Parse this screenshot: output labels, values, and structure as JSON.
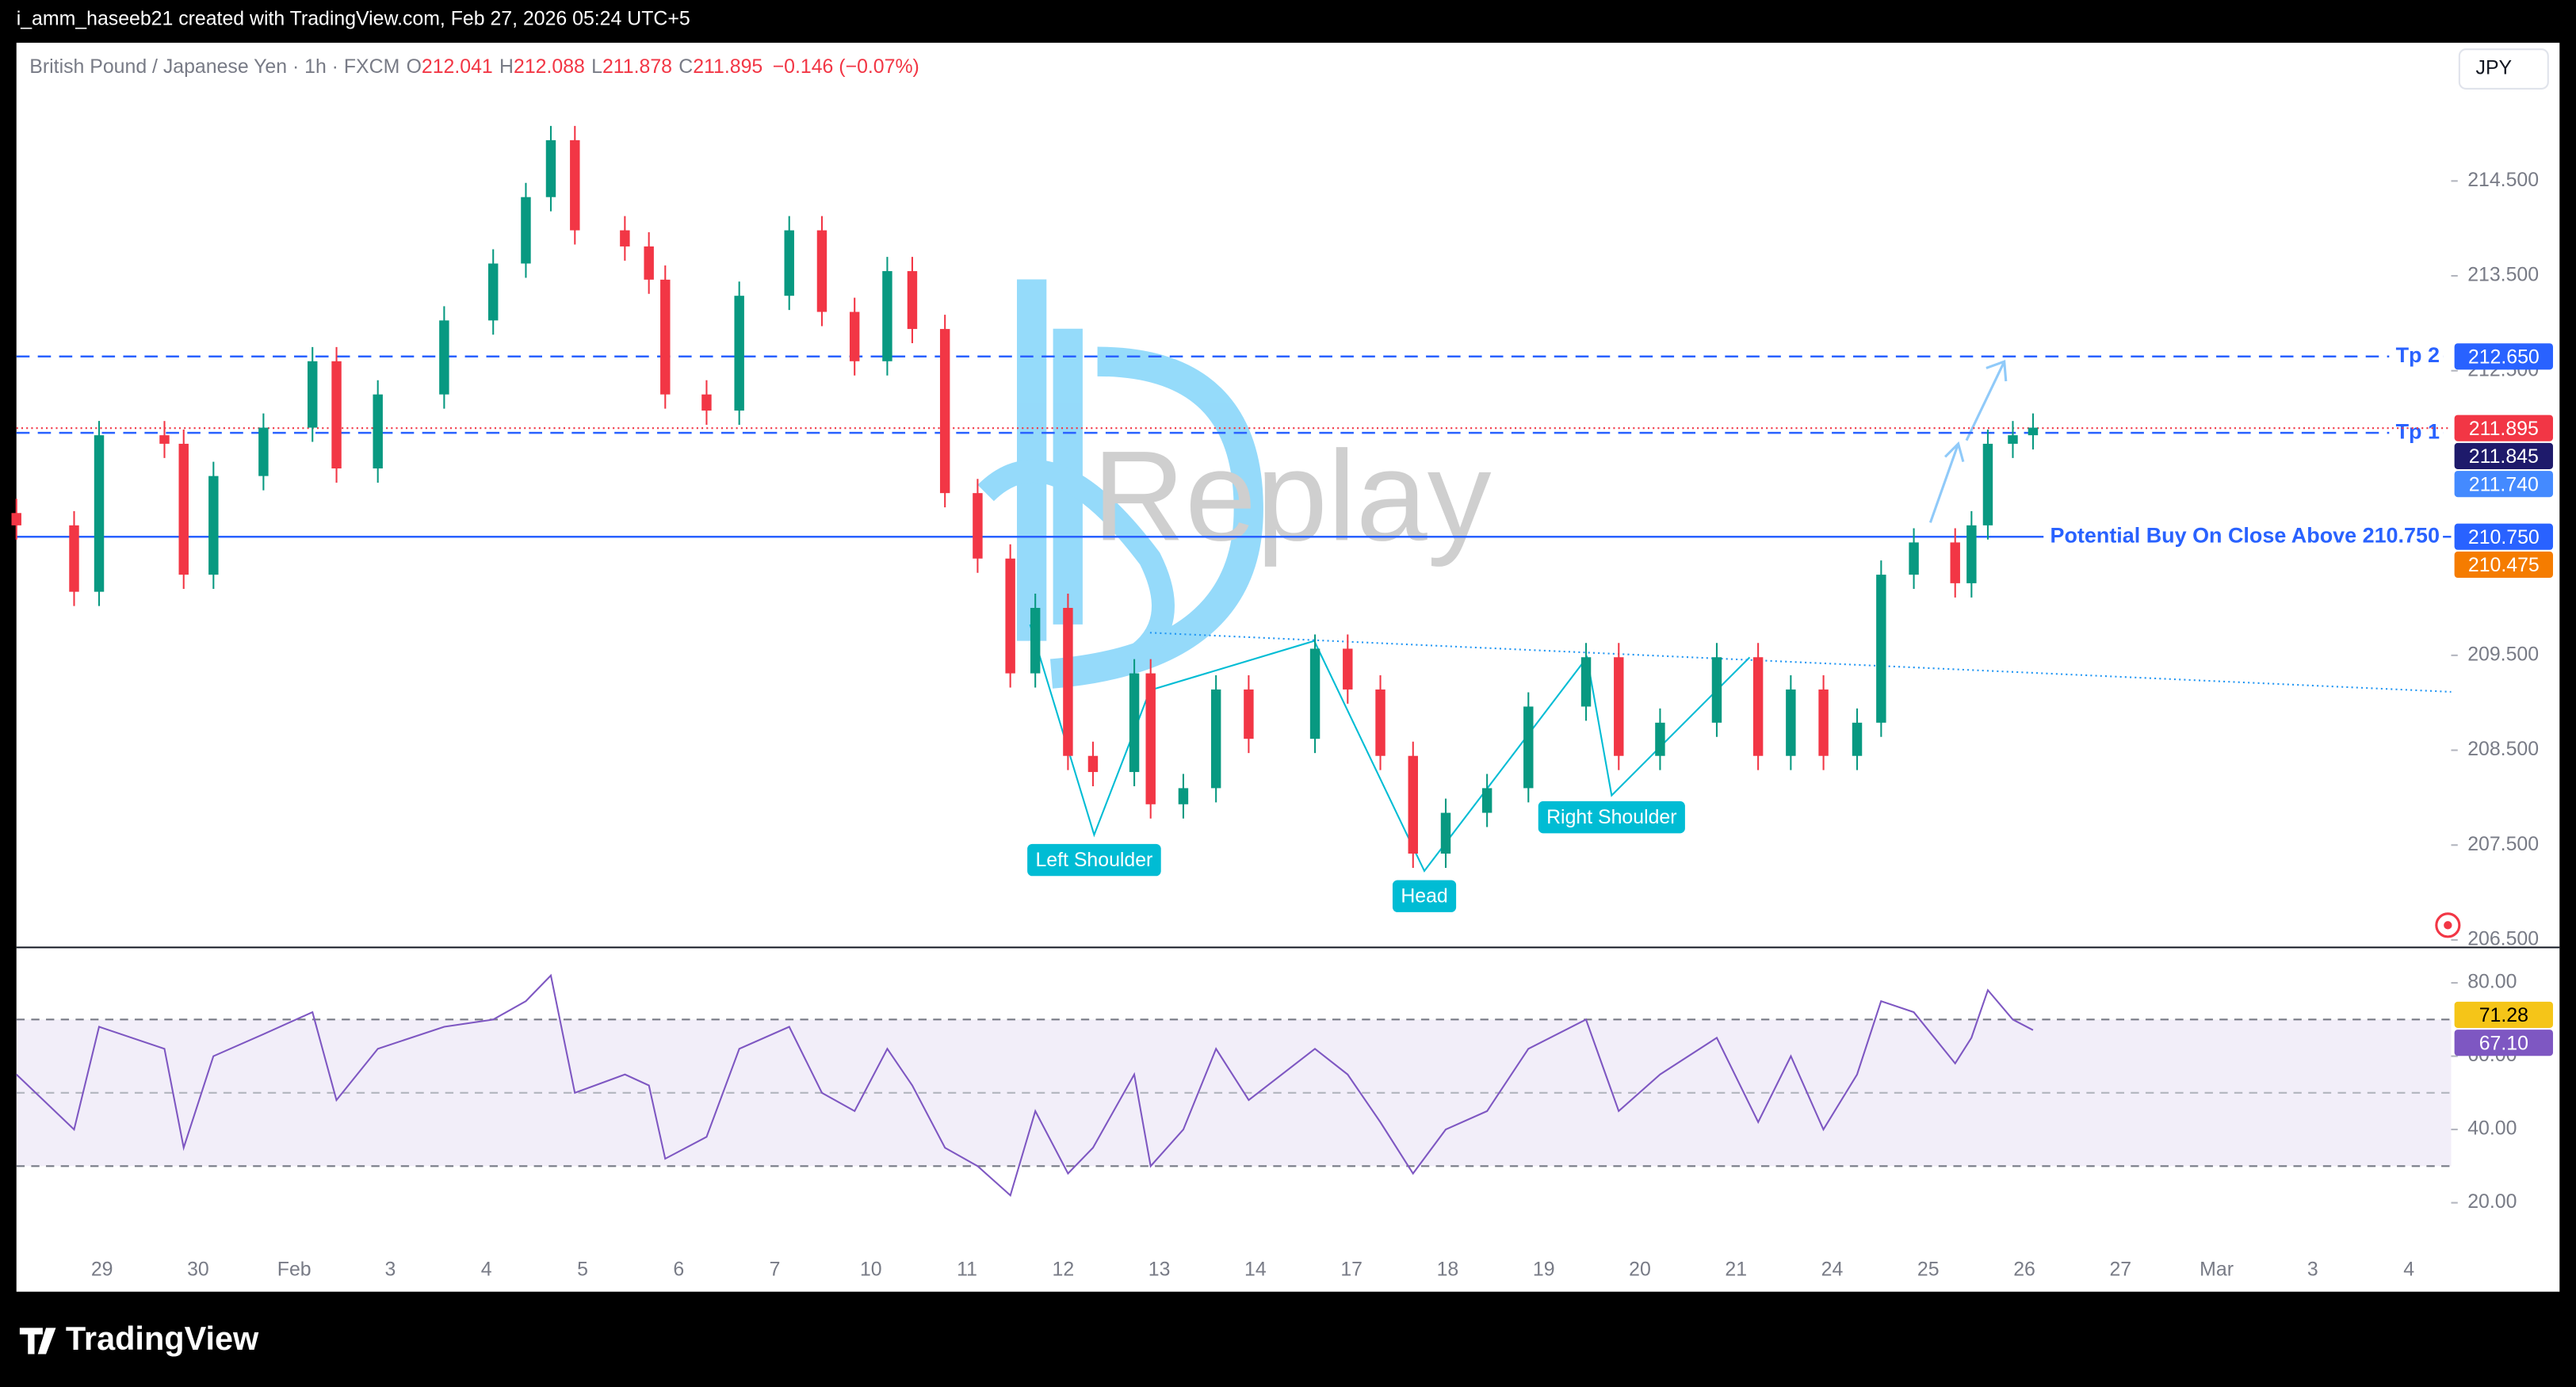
{
  "header": {
    "attribution": "i_amm_haseeb21 created with TradingView.com, Feb 27, 2026 05:24 UTC+5",
    "symbol": "British Pound / Japanese Yen · 1h · FXCM",
    "ohlc": [
      {
        "key": "O",
        "value": 212.041
      },
      {
        "key": "H",
        "value": 212.088
      },
      {
        "key": "L",
        "value": 211.878
      },
      {
        "key": "C",
        "value": 211.895
      }
    ],
    "change": "−0.146 (−0.07%)",
    "currency": "JPY"
  },
  "watermark": "Replay",
  "footer": {
    "brand": "TradingView"
  },
  "chart_data": [
    {
      "type": "candlestick",
      "categories": [
        "29",
        "30",
        "Feb",
        "3",
        "4",
        "5",
        "6",
        "7",
        "10",
        "11",
        "12",
        "13",
        "14",
        "17",
        "18",
        "19",
        "20",
        "21",
        "24",
        "25",
        "26",
        "27",
        "Mar",
        "3",
        "4"
      ],
      "xlim": [
        -0.89,
        24.44
      ],
      "ylim": [
        206.43,
        215.94
      ],
      "yticks": [
        {
          "value": 206.5,
          "label": "206.500"
        },
        {
          "value": 207.5,
          "label": "207.500"
        },
        {
          "value": 208.5,
          "label": "208.500"
        },
        {
          "value": 209.5,
          "label": "209.500"
        },
        {
          "value": 212.5,
          "label": "212.500"
        },
        {
          "value": 213.5,
          "label": "213.500"
        },
        {
          "value": 214.5,
          "label": "214.500"
        }
      ],
      "up_color": "#089981",
      "down_color": "#f23645",
      "x": [
        -0.89,
        -0.29,
        -0.03,
        0.65,
        0.85,
        1.16,
        1.68,
        2.19,
        2.44,
        2.87,
        3.56,
        4.07,
        4.41,
        4.67,
        4.92,
        5.44,
        5.69,
        5.86,
        6.29,
        6.63,
        7.15,
        7.49,
        7.83,
        8.17,
        8.43,
        8.77,
        9.11,
        9.45,
        9.71,
        10.05,
        10.31,
        10.74,
        10.91,
        11.25,
        11.59,
        11.93,
        12.62,
        12.96,
        13.3,
        13.64,
        13.98,
        14.41,
        14.84,
        15.44,
        15.78,
        16.21,
        16.8,
        17.23,
        17.57,
        17.91,
        18.26,
        18.51,
        18.85,
        19.28,
        19.45,
        19.62,
        19.88,
        20.09
      ],
      "open": [
        211.0,
        210.87,
        210.17,
        211.82,
        211.73,
        210.35,
        211.39,
        211.9,
        212.6,
        211.47,
        212.25,
        213.03,
        213.63,
        214.33,
        214.93,
        213.98,
        213.81,
        213.46,
        212.25,
        212.08,
        213.29,
        213.98,
        213.12,
        212.6,
        213.55,
        212.94,
        211.21,
        210.52,
        209.31,
        210.0,
        208.44,
        208.27,
        209.31,
        207.93,
        208.1,
        209.14,
        208.62,
        209.57,
        209.14,
        208.44,
        207.41,
        207.84,
        208.1,
        208.96,
        209.48,
        208.44,
        208.79,
        209.48,
        208.44,
        209.14,
        208.44,
        208.79,
        210.35,
        210.69,
        210.26,
        210.87,
        211.73,
        211.82
      ],
      "high": [
        211.15,
        211.02,
        211.97,
        211.97,
        211.88,
        211.54,
        212.05,
        212.75,
        212.75,
        212.4,
        213.18,
        213.78,
        214.48,
        215.08,
        215.08,
        214.13,
        213.96,
        213.61,
        212.4,
        213.44,
        214.13,
        214.13,
        213.27,
        213.7,
        213.7,
        213.09,
        211.36,
        210.67,
        210.15,
        210.15,
        208.59,
        209.46,
        209.46,
        208.25,
        209.29,
        209.29,
        209.72,
        209.72,
        209.29,
        208.59,
        207.99,
        208.25,
        209.11,
        209.63,
        209.63,
        208.94,
        209.63,
        209.63,
        209.29,
        209.29,
        208.94,
        210.5,
        210.84,
        210.84,
        211.02,
        211.88,
        211.97,
        212.05
      ],
      "low": [
        210.72,
        210.02,
        210.02,
        211.58,
        210.2,
        210.2,
        211.24,
        211.75,
        211.32,
        211.32,
        212.1,
        212.88,
        213.48,
        214.18,
        213.83,
        213.66,
        213.31,
        212.1,
        211.93,
        211.93,
        213.14,
        212.97,
        212.45,
        212.45,
        212.79,
        211.06,
        210.37,
        209.16,
        209.16,
        208.29,
        208.12,
        208.12,
        207.78,
        207.78,
        207.95,
        208.47,
        208.47,
        208.99,
        208.29,
        207.26,
        207.26,
        207.69,
        207.95,
        208.81,
        208.29,
        208.29,
        208.64,
        208.29,
        208.29,
        208.29,
        208.29,
        208.64,
        210.2,
        210.11,
        210.11,
        210.72,
        211.58,
        211.67
      ],
      "close": [
        210.87,
        210.17,
        211.82,
        211.73,
        210.35,
        211.39,
        211.9,
        212.6,
        211.47,
        212.25,
        213.03,
        213.63,
        214.33,
        214.93,
        213.98,
        213.81,
        213.46,
        212.25,
        212.08,
        213.29,
        213.98,
        213.12,
        212.6,
        213.55,
        212.94,
        211.21,
        210.52,
        209.31,
        210.0,
        208.44,
        208.27,
        209.31,
        207.93,
        208.1,
        209.14,
        208.62,
        209.57,
        209.14,
        208.44,
        207.41,
        207.84,
        208.1,
        208.96,
        209.48,
        208.44,
        208.79,
        209.48,
        208.44,
        209.14,
        208.44,
        208.79,
        210.35,
        210.69,
        210.26,
        210.87,
        211.73,
        211.82,
        211.9
      ],
      "levels": [
        {
          "name": "Tp 2",
          "value": 212.65,
          "color": "#2962ff",
          "style": "dashed"
        },
        {
          "name": "Tp 1",
          "value": 211.845,
          "color": "#2962ff",
          "style": "dashed"
        },
        {
          "name": "Potential Buy On Close Above 210.750",
          "value": 210.75,
          "color": "#2962ff",
          "style": "solid"
        }
      ],
      "last_price": {
        "value": 211.895,
        "color": "#f23645"
      },
      "price_tags": [
        {
          "value": 212.65,
          "label": "212.650",
          "color": "#2962ff"
        },
        {
          "value": 211.895,
          "label": "211.895",
          "color": "#f23645"
        },
        {
          "value": 211.845,
          "label": "211.845",
          "color": "#1e1a6b"
        },
        {
          "value": 211.74,
          "label": "211.740",
          "color": "#448aff"
        },
        {
          "value": 210.75,
          "label": "210.750",
          "color": "#2962ff"
        },
        {
          "value": 210.475,
          "label": "210.475",
          "color": "#f57c00"
        }
      ],
      "annotations": [
        "Left Shoulder",
        "Head",
        "Right Shoulder"
      ]
    },
    {
      "type": "line",
      "xlim": [
        -0.89,
        24.44
      ],
      "ylim": [
        7.4,
        89
      ],
      "yticks": [
        {
          "value": 20,
          "label": "20.00"
        },
        {
          "value": 40,
          "label": "40.00"
        },
        {
          "value": 60,
          "label": "60.00"
        },
        {
          "value": 80,
          "label": "80.00"
        }
      ],
      "band": [
        30,
        70
      ],
      "midline": 50,
      "color": "#7e57c2",
      "x": [
        -0.89,
        -0.29,
        -0.03,
        0.65,
        0.85,
        1.16,
        1.68,
        2.19,
        2.44,
        2.87,
        3.56,
        4.07,
        4.41,
        4.67,
        4.92,
        5.44,
        5.69,
        5.86,
        6.29,
        6.63,
        7.15,
        7.49,
        7.83,
        8.17,
        8.43,
        8.77,
        9.11,
        9.45,
        9.71,
        10.05,
        10.31,
        10.74,
        10.91,
        11.25,
        11.59,
        11.93,
        12.62,
        12.96,
        13.3,
        13.64,
        13.98,
        14.41,
        14.84,
        15.44,
        15.78,
        16.21,
        16.8,
        17.23,
        17.57,
        17.91,
        18.26,
        18.51,
        18.85,
        19.28,
        19.45,
        19.62,
        19.88,
        20.09
      ],
      "values": [
        55,
        40,
        68,
        62,
        35,
        60,
        66,
        72,
        48,
        62,
        68,
        70,
        75,
        82,
        50,
        55,
        52,
        32,
        38,
        62,
        68,
        50,
        45,
        62,
        52,
        35,
        30,
        22,
        45,
        28,
        35,
        55,
        30,
        40,
        62,
        48,
        62,
        55,
        42,
        28,
        40,
        45,
        62,
        70,
        45,
        55,
        65,
        42,
        60,
        40,
        55,
        75,
        72,
        58,
        65,
        78,
        70,
        67.1
      ],
      "price_tags": [
        {
          "value": 71.28,
          "label": "71.28",
          "color": "#f5c518",
          "text_color": "#000"
        },
        {
          "value": 67.1,
          "label": "67.10",
          "color": "#7e57c2",
          "text_color": "#fff"
        }
      ]
    }
  ]
}
